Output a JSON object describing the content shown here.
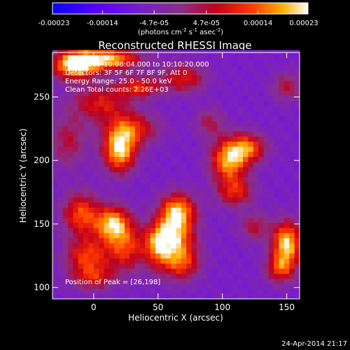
{
  "chart_data": {
    "type": "heatmap",
    "title": "Reconstructed RHESSI Image",
    "xlabel": "Heliocentric X (arcsec)",
    "ylabel": "Heliocentric Y (arcsec)",
    "xlim": [
      -32,
      160
    ],
    "ylim": [
      91,
      285
    ],
    "x_ticks": [
      0,
      50,
      100,
      150
    ],
    "x_tick_labels": [
      "0",
      "50",
      "100",
      "150"
    ],
    "y_ticks": [
      100,
      150,
      200,
      250
    ],
    "y_tick_labels": [
      "100",
      "150",
      "200",
      "250"
    ],
    "colorbar": {
      "min": -0.00023,
      "max": 0.00023,
      "ticks": [
        -0.00023,
        -0.00014,
        -4.7e-05,
        4.7e-05,
        0.00014,
        0.00023
      ],
      "tick_labels": [
        "-0.00023",
        "-0.00014",
        "-4.7e-05",
        "4.7e-05",
        "0.00014",
        "0.00023"
      ],
      "unit_main": "(photons cm",
      "unit_exp1": "-2",
      "unit_s": " s",
      "unit_exp2": "-1",
      "unit_asec": " asec",
      "unit_exp3": "-2",
      "unit_close": ")"
    },
    "annotations": [
      "2-Jul-2012 10:08:04.000 to 10:10:20.000",
      "Detectors: 3F 5F 6F 7F 8F 9F, Att 0",
      "Energy Range: 25.0 - 50.0 keV",
      "Clean     Total counts: 2.26E+03"
    ],
    "peak_label": "Position of Peak = [26,198]",
    "peak": [
      26,
      198
    ],
    "blobs": [
      {
        "x": -15,
        "y": 275,
        "amp": 1.0,
        "sx": 12,
        "sy": 8
      },
      {
        "x": 10,
        "y": 280,
        "amp": 0.95,
        "sx": 18,
        "sy": 6
      },
      {
        "x": 20,
        "y": 208,
        "amp": 1.0,
        "sx": 9,
        "sy": 12
      },
      {
        "x": 30,
        "y": 225,
        "amp": 0.6,
        "sx": 14,
        "sy": 9
      },
      {
        "x": 5,
        "y": 245,
        "amp": 0.55,
        "sx": 16,
        "sy": 10
      },
      {
        "x": 35,
        "y": 258,
        "amp": 0.6,
        "sx": 12,
        "sy": 6
      },
      {
        "x": 70,
        "y": 265,
        "amp": 0.55,
        "sx": 12,
        "sy": 8
      },
      {
        "x": -20,
        "y": 215,
        "amp": 0.4,
        "sx": 10,
        "sy": 14
      },
      {
        "x": 15,
        "y": 150,
        "amp": 0.95,
        "sx": 10,
        "sy": 10
      },
      {
        "x": -10,
        "y": 158,
        "amp": 0.7,
        "sx": 10,
        "sy": 12
      },
      {
        "x": -5,
        "y": 125,
        "amp": 0.65,
        "sx": 12,
        "sy": 10
      },
      {
        "x": 25,
        "y": 130,
        "amp": 0.6,
        "sx": 10,
        "sy": 12
      },
      {
        "x": 0,
        "y": 108,
        "amp": 0.5,
        "sx": 12,
        "sy": 7
      },
      {
        "x": 65,
        "y": 160,
        "amp": 0.95,
        "sx": 10,
        "sy": 10
      },
      {
        "x": 60,
        "y": 140,
        "amp": 0.85,
        "sx": 12,
        "sy": 10
      },
      {
        "x": 68,
        "y": 120,
        "amp": 0.7,
        "sx": 10,
        "sy": 10
      },
      {
        "x": 50,
        "y": 130,
        "amp": 0.55,
        "sx": 8,
        "sy": 12
      },
      {
        "x": 105,
        "y": 200,
        "amp": 0.9,
        "sx": 10,
        "sy": 12
      },
      {
        "x": 120,
        "y": 210,
        "amp": 0.7,
        "sx": 10,
        "sy": 8
      },
      {
        "x": 110,
        "y": 175,
        "amp": 0.55,
        "sx": 10,
        "sy": 8
      },
      {
        "x": 150,
        "y": 135,
        "amp": 1.0,
        "sx": 8,
        "sy": 12
      },
      {
        "x": 145,
        "y": 115,
        "amp": 0.6,
        "sx": 8,
        "sy": 8
      },
      {
        "x": 150,
        "y": 258,
        "amp": 0.4,
        "sx": 8,
        "sy": 8
      },
      {
        "x": 90,
        "y": 230,
        "amp": 0.35,
        "sx": 8,
        "sy": 8
      },
      {
        "x": 125,
        "y": 148,
        "amp": 0.4,
        "sx": 8,
        "sy": 8
      }
    ]
  },
  "footer": {
    "date": "24-Apr-2014 21:17"
  }
}
